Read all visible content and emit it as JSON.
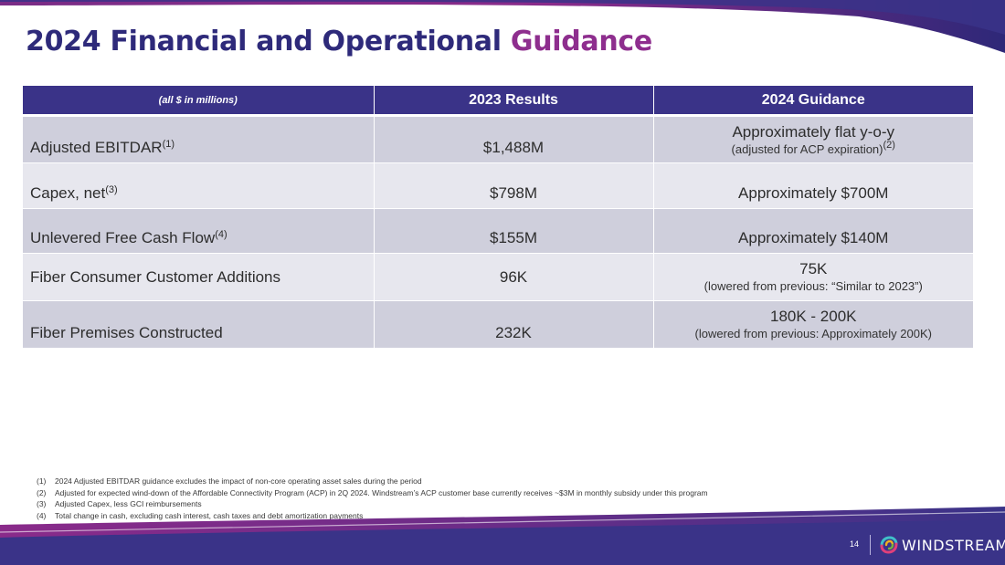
{
  "slide": {
    "title_main": "2024 Financial and Operational",
    "title_accent": "Guidance",
    "page_number": "14",
    "brand": "WINDSTREAM",
    "colors": {
      "navy": "#3a3388",
      "purple": "#8e2e8e",
      "title": "#2e2a7a"
    }
  },
  "table": {
    "headers": {
      "units": "(all $ in millions)",
      "results": "2023 Results",
      "guidance": "2024 Guidance"
    },
    "rows": [
      {
        "metric": "Adjusted EBITDAR",
        "note": "(1)",
        "result": "$1,488M",
        "guidance": "Approximately flat y-o-y",
        "guidance_sub": "(adjusted for ACP expiration)",
        "guidance_sub_note": "(2)"
      },
      {
        "metric": "Capex, net",
        "note": "(3)",
        "result": "$798M",
        "guidance": "Approximately $700M"
      },
      {
        "metric": "Unlevered Free Cash Flow",
        "note": "(4)",
        "result": "$155M",
        "guidance": "Approximately $140M"
      },
      {
        "metric": "Fiber Consumer Customer Additions",
        "result": "96K",
        "guidance": "75K",
        "guidance_sub": "(lowered from previous: “Similar to 2023”)"
      },
      {
        "metric": "Fiber Premises Constructed",
        "result": "232K",
        "guidance": "180K - 200K",
        "guidance_sub": "(lowered from previous: Approximately 200K)"
      }
    ]
  },
  "footnotes": [
    {
      "num": "(1)",
      "text": "2024 Adjusted EBITDAR guidance excludes the impact of non-core operating asset sales during the period"
    },
    {
      "num": "(2)",
      "text": "Adjusted for expected wind-down of the Affordable Connectivity Program (ACP) in 2Q 2024.  Windstream’s ACP customer base currently receives ~$3M in monthly subsidy under this program"
    },
    {
      "num": "(3)",
      "text": "Adjusted Capex, less GCI reimbursements"
    },
    {
      "num": "(4)",
      "text": "Total change in cash, excluding cash interest, cash taxes and debt amortization payments"
    }
  ]
}
